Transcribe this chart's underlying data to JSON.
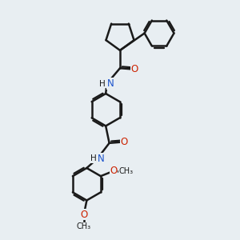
{
  "background_color": "#e8eef2",
  "bond_color": "#1a1a1a",
  "bond_width": 1.8,
  "N_color": "#1a52cc",
  "O_color": "#cc2200",
  "C_color": "#1a1a1a",
  "font_size_atoms": 8.5,
  "figsize": [
    3.0,
    3.0
  ],
  "dpi": 100,
  "xlim": [
    0,
    10
  ],
  "ylim": [
    0,
    10
  ]
}
